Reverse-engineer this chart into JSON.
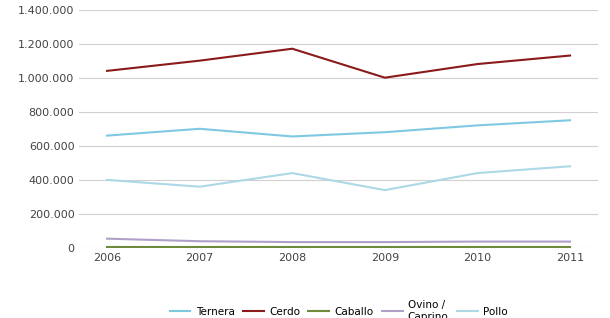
{
  "years": [
    2006,
    2007,
    2008,
    2009,
    2010,
    2011
  ],
  "series": {
    "Ternera": [
      660000,
      700000,
      655000,
      680000,
      720000,
      750000
    ],
    "Cerdo": [
      1040000,
      1100000,
      1170000,
      1000000,
      1080000,
      1130000
    ],
    "Caballo": [
      8000,
      8000,
      8000,
      8000,
      8000,
      8000
    ],
    "Ovino / Caprino": [
      55000,
      40000,
      35000,
      35000,
      38000,
      38000
    ],
    "Pollo": [
      400000,
      360000,
      440000,
      340000,
      440000,
      480000
    ]
  },
  "series_order": [
    "Ternera",
    "Cerdo",
    "Caballo",
    "Ovino / Caprino",
    "Pollo"
  ],
  "colors": {
    "Ternera": "#7ec8e3",
    "Cerdo": "#8b1a1a",
    "Caballo": "#6e8b3d",
    "Ovino / Caprino": "#b0a0c8",
    "Pollo": "#add8e6"
  },
  "ylim": [
    0,
    1400000
  ],
  "yticks": [
    0,
    200000,
    400000,
    600000,
    800000,
    1000000,
    1200000,
    1400000
  ],
  "ytick_labels": [
    "0",
    "200.000",
    "400.000",
    "600.000",
    "800.000",
    "1.000.000",
    "1.200.000",
    "1.400.000"
  ],
  "background_color": "#ffffff",
  "grid_color": "#d0d0d0",
  "legend_labels": [
    "Ternera",
    "Cerdo",
    "Caballo",
    "Ovino /\nCaprino",
    "Pollo"
  ]
}
